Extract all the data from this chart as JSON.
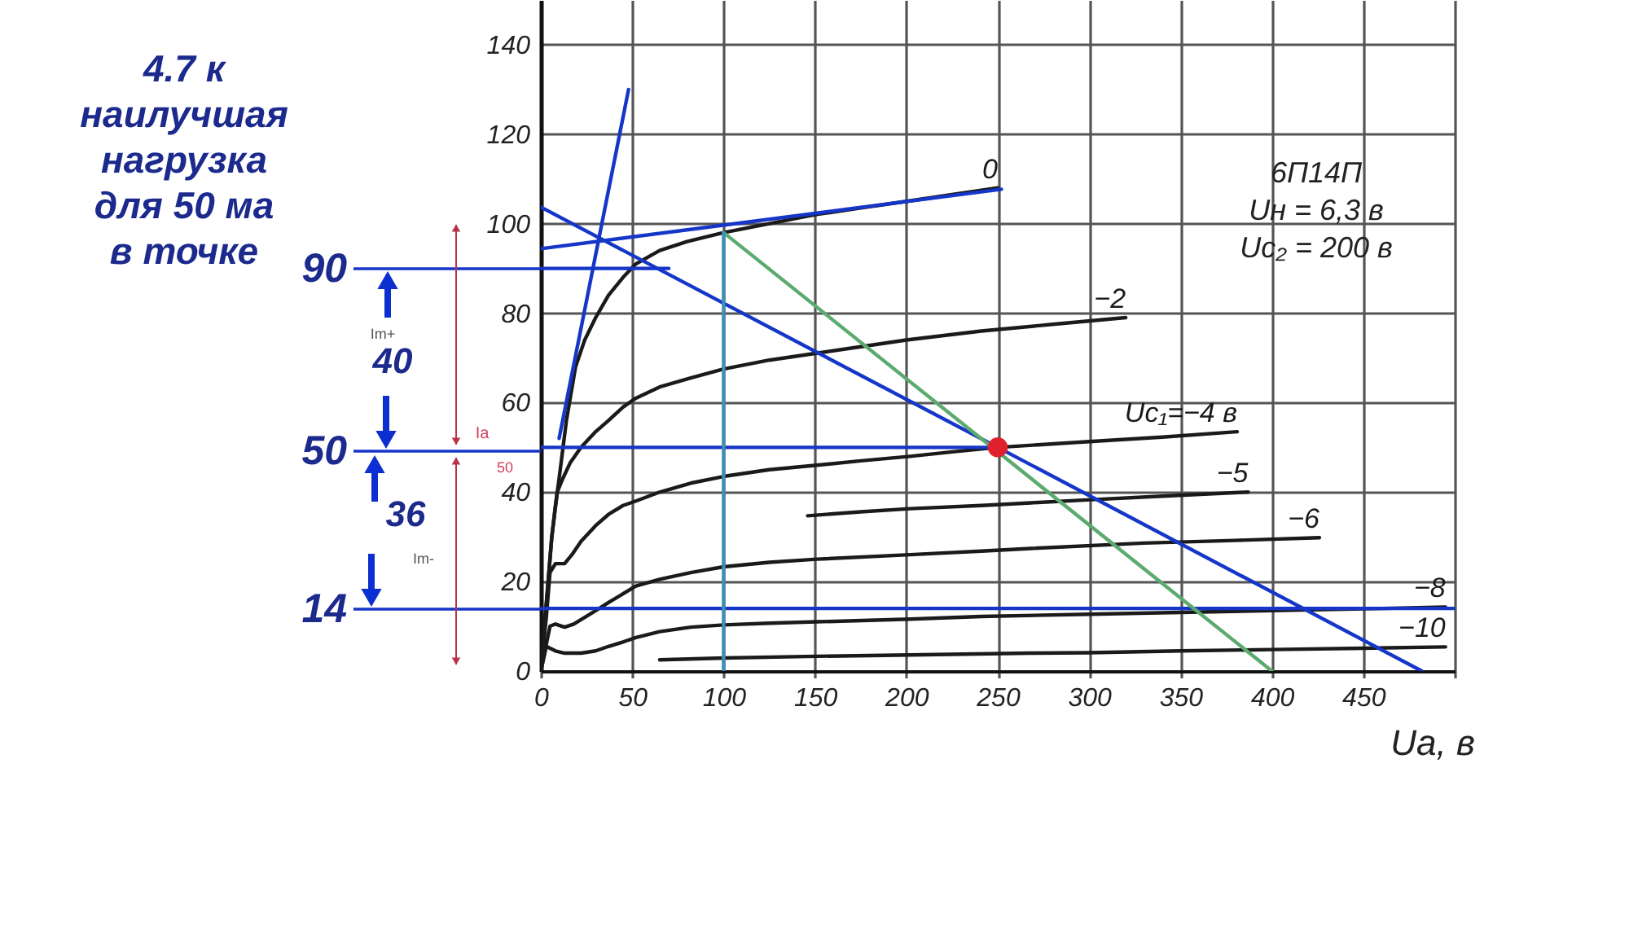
{
  "chart_data": {
    "type": "line",
    "xlabel": "Uа, в",
    "xlim": [
      0,
      500
    ],
    "ylim": [
      0,
      150
    ],
    "xticks": [
      0,
      50,
      100,
      150,
      200,
      250,
      300,
      350,
      400,
      450,
      {
        "value": 500,
        "label": null
      }
    ],
    "yticks": [
      0,
      20,
      40,
      60,
      80,
      100,
      120,
      140
    ],
    "grid": true,
    "series": [
      {
        "name": "0",
        "color": "#1a1a1a",
        "x": [
          0,
          2,
          4,
          6,
          8,
          10,
          14,
          19,
          24,
          30,
          37,
          45,
          52,
          65,
          80,
          100,
          125,
          150,
          175,
          200,
          225,
          250
        ],
        "values": [
          0,
          10,
          20,
          30,
          37,
          43,
          56,
          68,
          74,
          79,
          84,
          88,
          91,
          94,
          96,
          98,
          100,
          102,
          103.5,
          105,
          106.5,
          108
        ]
      },
      {
        "name": "−2",
        "color": "#1a1a1a",
        "x": [
          0,
          3,
          6,
          9,
          12,
          16,
          22,
          30,
          37,
          45,
          52,
          65,
          82,
          100,
          125,
          150,
          175,
          200,
          241,
          280,
          320
        ],
        "values": [
          0,
          15,
          30,
          40,
          43,
          46.5,
          50,
          53.5,
          56,
          59,
          61,
          63.5,
          65.5,
          67.5,
          69.5,
          71,
          72.5,
          74,
          76,
          77.5,
          79
        ]
      },
      {
        "name": "Uс₁=−4 в",
        "color": "#1a1a1a",
        "x": [
          0,
          3,
          5,
          8,
          13,
          17,
          22,
          30,
          37,
          45,
          52,
          65,
          82,
          100,
          125,
          151,
          175,
          202,
          225,
          250,
          300,
          340,
          381
        ],
        "values": [
          0,
          12,
          22,
          24,
          24,
          26,
          29,
          32.5,
          35,
          37,
          38,
          40,
          42,
          43.5,
          45,
          46,
          47,
          48,
          49,
          50,
          51.3,
          52.3,
          53.5
        ]
      },
      {
        "name": "−5",
        "color": "#1a1a1a",
        "x": [
          146,
          175,
          202,
          241,
          268,
          301,
          340,
          387
        ],
        "values": [
          34.7,
          35.6,
          36.3,
          37,
          37.6,
          38.3,
          39.1,
          40
        ]
      },
      {
        "name": "−6",
        "color": "#1a1a1a",
        "x": [
          0,
          3,
          5,
          8,
          13,
          18,
          22,
          30,
          37,
          52,
          65,
          82,
          100,
          125,
          151,
          202,
          241,
          268,
          330,
          380,
          426
        ],
        "values": [
          0,
          6,
          10,
          10.5,
          9.8,
          10.5,
          11.5,
          13.5,
          15.3,
          19,
          20.5,
          22,
          23.3,
          24.3,
          25,
          26,
          26.8,
          27.4,
          28.6,
          29.2,
          29.8
        ]
      },
      {
        "name": "−8",
        "color": "#1a1a1a",
        "x": [
          0,
          3,
          8,
          13,
          22,
          30,
          37,
          45,
          52,
          65,
          82,
          100,
          125,
          151,
          202,
          241,
          300,
          350,
          400,
          450,
          495
        ],
        "values": [
          0,
          5.5,
          4.5,
          4,
          4,
          4.5,
          5.5,
          6.5,
          7.5,
          8.8,
          9.8,
          10.3,
          10.7,
          11,
          11.6,
          12.2,
          12.7,
          13.1,
          13.5,
          13.9,
          14.3
        ]
      },
      {
        "name": "−10",
        "color": "#1a1a1a",
        "x": [
          65,
          100,
          151,
          202,
          268,
          300,
          350,
          400,
          450,
          495
        ],
        "values": [
          2.5,
          2.9,
          3.3,
          3.6,
          4,
          4.1,
          4.5,
          4.8,
          5.1,
          5.4
        ]
      },
      {
        "color": "#1536c8",
        "x": [
          10,
          48
        ],
        "values": [
          52,
          130
        ]
      },
      {
        "color": "#1536c8",
        "x": [
          0,
          252
        ],
        "values": [
          94.4,
          107.7
        ]
      },
      {
        "color": "#1536c8",
        "x": [
          0,
          250,
          482
        ],
        "values": [
          103.7,
          50,
          0
        ]
      },
      {
        "color": "#1536c8",
        "x": [
          0,
          70
        ],
        "values": [
          90,
          90
        ]
      },
      {
        "color": "#1536c8",
        "x": [
          0,
          250
        ],
        "values": [
          50,
          50
        ]
      },
      {
        "color": "#1536c8",
        "x": [
          0,
          500
        ],
        "values": [
          14,
          14
        ]
      },
      {
        "color": "#5cab6e",
        "x": [
          100,
          400
        ],
        "values": [
          98,
          0
        ]
      },
      {
        "color": "#3f8fb5",
        "x": [
          100,
          100
        ],
        "values": [
          0,
          98
        ]
      },
      {
        "type": "scatter",
        "marker": "circle",
        "color": "#e0202c",
        "x": [
          250
        ],
        "values": [
          50
        ]
      }
    ],
    "annotations": [
      "4.7 к\nнаилучшая\nнагрузка\nдля 50 ма\nв точке",
      "6П14П\nUн = 6,3 в\nUс₂ = 200 в",
      "90",
      "Im+",
      "40",
      "Ia",
      "50",
      "50",
      "36",
      "Im-",
      "14"
    ]
  }
}
